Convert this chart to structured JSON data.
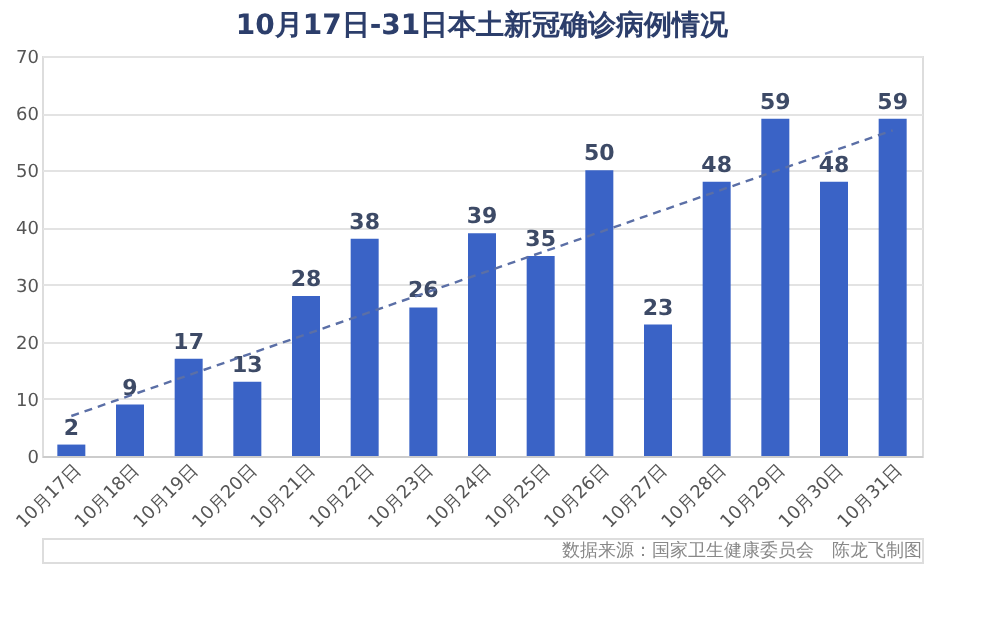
{
  "chart_data": {
    "type": "bar",
    "title": "10月17日-31日本土新冠确诊病例情况",
    "categories": [
      "10月17日",
      "10月18日",
      "10月19日",
      "10月20日",
      "10月21日",
      "10月22日",
      "10月23日",
      "10月24日",
      "10月25日",
      "10月26日",
      "10月27日",
      "10月28日",
      "10月29日",
      "10月30日",
      "10月31日"
    ],
    "series": [
      {
        "color": "#3a63c6",
        "values": [
          2,
          9,
          17,
          13,
          28,
          38,
          26,
          39,
          35,
          50,
          23,
          48,
          59,
          48,
          59
        ],
        "value_labels": [
          "2",
          "9",
          "17",
          "13",
          "28",
          "38",
          "26",
          "39",
          "35",
          "50",
          "23",
          "48",
          "59",
          "48",
          "59"
        ]
      },
      {
        "type": "line",
        "color": "#5b6fa6",
        "line_style": "dashed",
        "x": [
          "10月17日",
          "10月31日"
        ],
        "values": [
          7,
          57
        ]
      }
    ],
    "ylim": [
      0,
      70
    ],
    "yticks": [
      0,
      10,
      20,
      30,
      40,
      50,
      60,
      70
    ],
    "grid": "y",
    "annotations": [
      "数据来源：国家卫生健康委员会　陈龙飞制图"
    ]
  }
}
